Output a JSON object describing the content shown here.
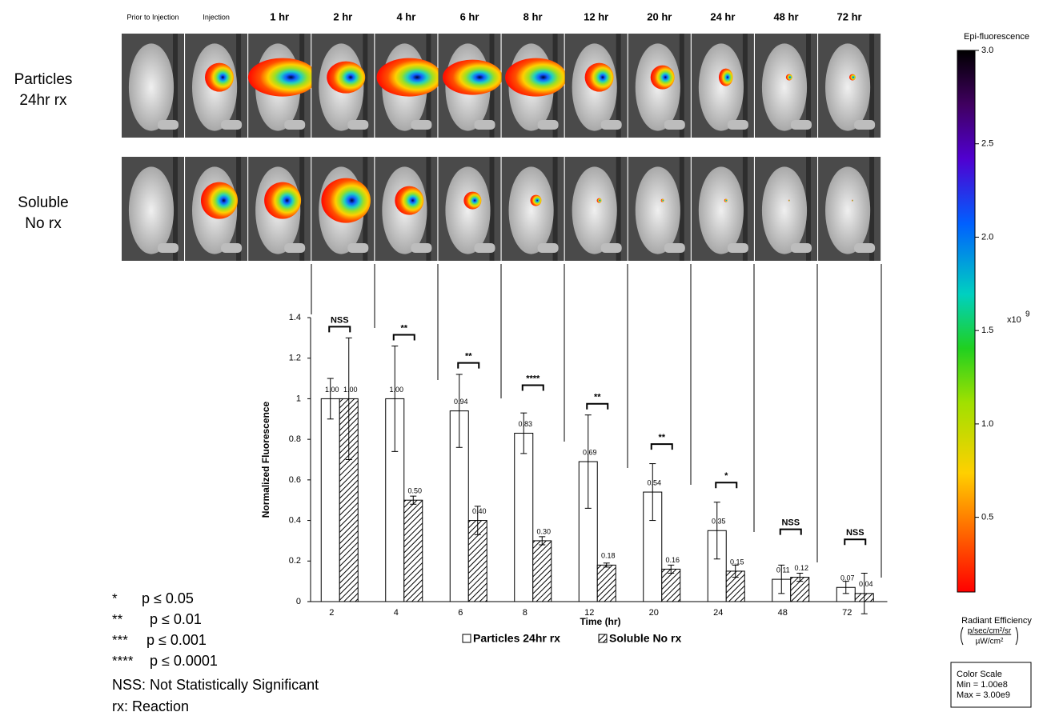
{
  "images": {
    "columns": [
      "Prior to Injection",
      "Injection",
      "1 hr",
      "2 hr",
      "4 hr",
      "6 hr",
      "8 hr",
      "12 hr",
      "20 hr",
      "24 hr",
      "48 hr",
      "72 hr"
    ],
    "rows": [
      [
        "Particles",
        "24hr rx"
      ],
      [
        "Soluble",
        "No rx"
      ]
    ]
  },
  "colorbar": {
    "title": "Epi-fluorescence",
    "ylim": [
      0.1,
      3.0
    ],
    "yticks": [
      0.5,
      {
        "value": 1,
        "label": "1.0"
      },
      1.5,
      {
        "value": 2,
        "label": "2.0"
      },
      2.5,
      {
        "value": 3,
        "label": "3.0"
      }
    ],
    "multiplier": "x10",
    "exponent": "9",
    "unit_title": "Radiant Efficiency",
    "unit_numerator": "p/sec/cm²/sr",
    "unit_denominator": "µW/cm²",
    "scale_box": [
      "Color Scale",
      "Min = 1.00e8",
      "Max = 3.00e9"
    ]
  },
  "chart_data": {
    "type": "bar",
    "y_label": "Normalized Fluorescence",
    "x_label": "Time (hr)",
    "categories": [
      "2",
      "4",
      "6",
      "8",
      "12",
      "20",
      "24",
      "48",
      "72"
    ],
    "series": [
      {
        "name": "Particles 24hr rx",
        "color": "#ffffff",
        "values": [
          1.0,
          1.0,
          0.94,
          0.83,
          0.69,
          0.54,
          0.35,
          0.11,
          0.07
        ],
        "value_labels": [
          "1.00",
          "1.00",
          "0.94",
          "0.83",
          "0.69",
          "0.54",
          "0.35",
          "0.11",
          "0.07"
        ],
        "errors": [
          0.1,
          0.26,
          0.18,
          0.1,
          0.23,
          0.14,
          0.14,
          0.07,
          0.03
        ]
      },
      {
        "name": "Soluble No rx",
        "color": "#000000",
        "values": [
          1.0,
          0.5,
          0.4,
          0.3,
          0.18,
          0.16,
          0.15,
          0.12,
          0.04
        ],
        "value_labels": [
          "1.00",
          "0.50",
          "0.40",
          "0.30",
          "0.18",
          "0.16",
          "0.15",
          "0.12",
          "0.04"
        ],
        "errors": [
          0.3,
          0.02,
          0.07,
          0.02,
          0.01,
          0.02,
          0.03,
          0.02,
          0.1
        ]
      }
    ],
    "significance": [
      "NSS",
      "**",
      "**",
      "****",
      "**",
      "**",
      "*",
      "NSS",
      "NSS"
    ],
    "ylim": [
      0,
      1.4
    ],
    "yticks": [
      0,
      0.2,
      0.4,
      0.6,
      0.8,
      1,
      1.2,
      1.4
    ]
  },
  "key": [
    {
      "symbol": "*",
      "meaning": "p ≤ 0.05"
    },
    {
      "symbol": "**",
      "meaning": "p ≤ 0.01"
    },
    {
      "symbol": "***",
      "meaning": "p ≤ 0.001"
    },
    {
      "symbol": "****",
      "meaning": "p ≤ 0.0001"
    }
  ],
  "notes": [
    "NSS: Not Statistically Significant",
    "rx: Reaction"
  ]
}
